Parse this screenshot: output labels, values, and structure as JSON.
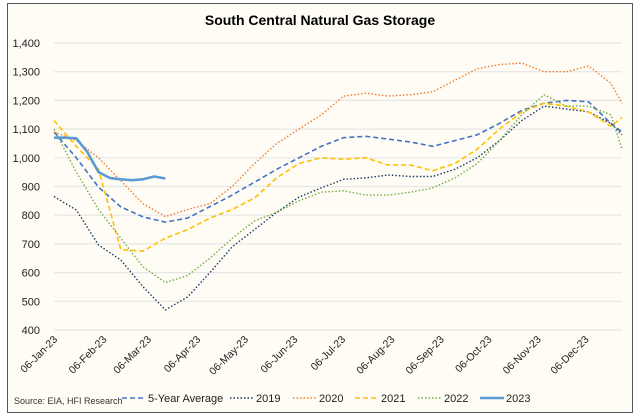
{
  "chart_data": {
    "type": "line",
    "title": "South Central Natural Gas Storage",
    "source": "Source: EIA, HFI Research",
    "ylim": [
      400,
      1400
    ],
    "yticks": [
      400,
      500,
      600,
      700,
      800,
      900,
      1000,
      1100,
      1200,
      1300,
      1400
    ],
    "ytick_labels": [
      "400",
      "500",
      "600",
      "700",
      "800",
      "900",
      "1,000",
      "1,100",
      "1,200",
      "1,300",
      "1,400"
    ],
    "x_unit": "days since 06-Jan",
    "xlim": [
      0,
      357
    ],
    "xticks": [
      0,
      31,
      59,
      90,
      120,
      151,
      181,
      212,
      243,
      273,
      304,
      334
    ],
    "xtick_labels": [
      "06-Jan-23",
      "06-Feb-23",
      "06-Mar-23",
      "06-Apr-23",
      "06-May-23",
      "06-Jun-23",
      "06-Jul-23",
      "06-Aug-23",
      "06-Sep-23",
      "06-Oct-23",
      "06-Nov-23",
      "06-Dec-23"
    ],
    "grid": true,
    "legend_position": "bottom",
    "x": [
      0,
      14,
      28,
      42,
      56,
      70,
      84,
      98,
      112,
      126,
      140,
      154,
      168,
      182,
      196,
      210,
      224,
      238,
      252,
      266,
      280,
      294,
      308,
      322,
      336,
      350,
      357
    ],
    "series": [
      {
        "name": "5-Year Average",
        "color": "#4472C4",
        "style": "dashed",
        "width": 1.6,
        "values": [
          1090,
          1000,
          898,
          829,
          794,
          776,
          790,
          830,
          870,
          915,
          960,
          1000,
          1040,
          1070,
          1075,
          1065,
          1055,
          1040,
          1060,
          1080,
          1120,
          1165,
          1190,
          1200,
          1195,
          1120,
          1090
        ]
      },
      {
        "name": "2019",
        "color": "#1F3864",
        "style": "dotted",
        "width": 1.4,
        "values": [
          865,
          818,
          696,
          644,
          550,
          470,
          515,
          600,
          690,
          750,
          810,
          863,
          895,
          925,
          930,
          940,
          935,
          935,
          960,
          1000,
          1060,
          1130,
          1180,
          1170,
          1160,
          1120,
          1080
        ]
      },
      {
        "name": "2020",
        "color": "#ED7D31",
        "style": "dotted",
        "width": 1.4,
        "values": [
          1090,
          1060,
          1000,
          920,
          840,
          795,
          820,
          840,
          900,
          980,
          1050,
          1100,
          1150,
          1215,
          1225,
          1215,
          1220,
          1230,
          1270,
          1310,
          1325,
          1330,
          1300,
          1300,
          1320,
          1260,
          1190
        ]
      },
      {
        "name": "2021",
        "color": "#FFC000",
        "style": "dashed",
        "width": 1.6,
        "values": [
          1130,
          1040,
          960,
          680,
          675,
          720,
          750,
          790,
          820,
          860,
          930,
          980,
          1000,
          995,
          1000,
          975,
          975,
          955,
          980,
          1030,
          1100,
          1160,
          1190,
          1180,
          1160,
          1110,
          1140
        ]
      },
      {
        "name": "2022",
        "color": "#70AD47",
        "style": "dotted",
        "width": 1.4,
        "values": [
          1100,
          950,
          820,
          720,
          620,
          565,
          590,
          650,
          720,
          780,
          810,
          850,
          880,
          885,
          870,
          870,
          880,
          895,
          930,
          980,
          1060,
          1150,
          1220,
          1180,
          1180,
          1150,
          1030
        ]
      },
      {
        "name": "2023",
        "color": "#5B9BD5",
        "style": "solid",
        "width": 2.6,
        "x": [
          0,
          7,
          14,
          21,
          28,
          35,
          42,
          49,
          56,
          63,
          70
        ],
        "values": [
          1070,
          1070,
          1068,
          1020,
          950,
          930,
          925,
          922,
          925,
          935,
          928
        ]
      }
    ]
  }
}
